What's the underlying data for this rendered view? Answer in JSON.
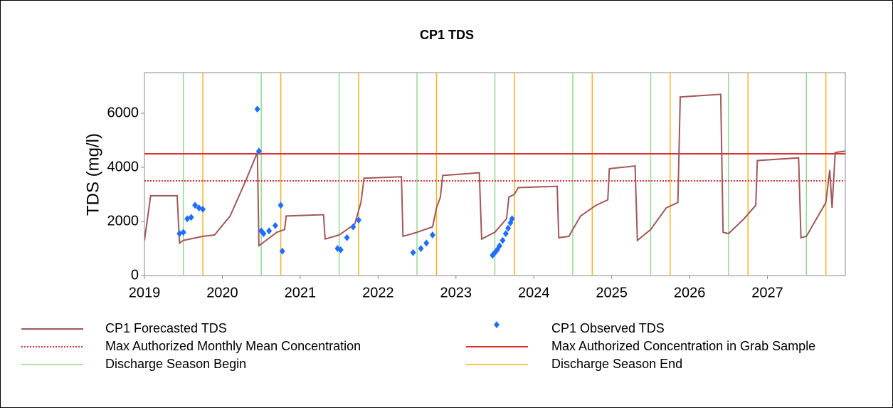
{
  "chart_data": {
    "type": "line",
    "title": "CP1 TDS",
    "y_label": "TDS (mg/l)",
    "xlim": [
      2019,
      2028
    ],
    "xticks": [
      2019,
      2020,
      2021,
      2022,
      2023,
      2024,
      2025,
      2026,
      2027
    ],
    "ylim": [
      0,
      7500
    ],
    "yticks": [
      0,
      2000,
      4000,
      6000
    ],
    "series": [
      {
        "name": "CP1 Forecasted TDS",
        "color": "#a0585a",
        "kind": "line",
        "x": [
          2019.0,
          2019.08,
          2019.42,
          2019.45,
          2019.5,
          2019.75,
          2019.9,
          2020.1,
          2020.3,
          2020.45,
          2020.47,
          2020.7,
          2020.8,
          2020.82,
          2021.3,
          2021.32,
          2021.5,
          2021.7,
          2021.78,
          2021.82,
          2022.3,
          2022.32,
          2022.5,
          2022.7,
          2022.75,
          2022.8,
          2022.83,
          2023.3,
          2023.33,
          2023.5,
          2023.65,
          2023.68,
          2023.75,
          2023.8,
          2024.3,
          2024.32,
          2024.45,
          2024.6,
          2024.8,
          2024.95,
          2024.97,
          2025.3,
          2025.33,
          2025.5,
          2025.7,
          2025.85,
          2025.88,
          2026.4,
          2026.43,
          2026.5,
          2026.7,
          2026.85,
          2026.87,
          2027.4,
          2027.43,
          2027.5,
          2027.75,
          2027.8,
          2027.83,
          2027.87,
          2028.0
        ],
        "values": [
          1300,
          2950,
          2950,
          1200,
          1300,
          1450,
          1500,
          2200,
          3500,
          4550,
          1100,
          1600,
          1700,
          2200,
          2250,
          1350,
          1500,
          1900,
          2700,
          3600,
          3650,
          1450,
          1600,
          1800,
          2500,
          2900,
          3700,
          3800,
          1350,
          1600,
          2100,
          2900,
          3000,
          3250,
          3300,
          1400,
          1450,
          2200,
          2600,
          2800,
          3950,
          4050,
          1300,
          1700,
          2500,
          2700,
          6600,
          6700,
          1600,
          1550,
          2100,
          2600,
          4250,
          4350,
          1400,
          1450,
          2700,
          3900,
          2500,
          4550,
          4600
        ]
      },
      {
        "name": "CP1 Observed TDS",
        "color": "#1f6fff",
        "kind": "scatter",
        "x": [
          2019.45,
          2019.5,
          2019.55,
          2019.6,
          2019.65,
          2019.7,
          2019.75,
          2020.45,
          2020.47,
          2020.5,
          2020.53,
          2020.6,
          2020.68,
          2020.75,
          2020.77,
          2021.48,
          2021.52,
          2021.6,
          2021.68,
          2021.75,
          2022.45,
          2022.55,
          2022.62,
          2022.7,
          2023.47,
          2023.5,
          2023.53,
          2023.56,
          2023.6,
          2023.64,
          2023.67,
          2023.7,
          2023.72
        ],
        "values": [
          1550,
          1600,
          2100,
          2150,
          2600,
          2500,
          2450,
          6150,
          4600,
          1650,
          1550,
          1650,
          1850,
          2600,
          900,
          1000,
          950,
          1400,
          1800,
          2050,
          850,
          1000,
          1200,
          1500,
          750,
          850,
          950,
          1100,
          1300,
          1550,
          1750,
          1950,
          2100
        ]
      },
      {
        "name": "Max Authorized Monthly Mean Concentration",
        "color": "#e03030",
        "kind": "line",
        "dash": "dotted",
        "x": [
          2019,
          2028
        ],
        "values": [
          3500,
          3500
        ]
      },
      {
        "name": "Max Authorized Concentration in Grab Sample",
        "color": "#e03030",
        "kind": "line",
        "x": [
          2019,
          2028
        ],
        "values": [
          4500,
          4500
        ]
      },
      {
        "name": "Discharge Season Begin",
        "color": "#90dc90",
        "kind": "vline",
        "x": [
          2019.5,
          2020.5,
          2021.5,
          2022.5,
          2023.5,
          2024.5,
          2025.5,
          2026.5,
          2027.5
        ]
      },
      {
        "name": "Discharge Season End",
        "color": "#ffb020",
        "kind": "vline",
        "x": [
          2019.75,
          2020.75,
          2021.75,
          2022.75,
          2023.75,
          2024.75,
          2025.75,
          2026.75,
          2027.75
        ]
      }
    ]
  }
}
